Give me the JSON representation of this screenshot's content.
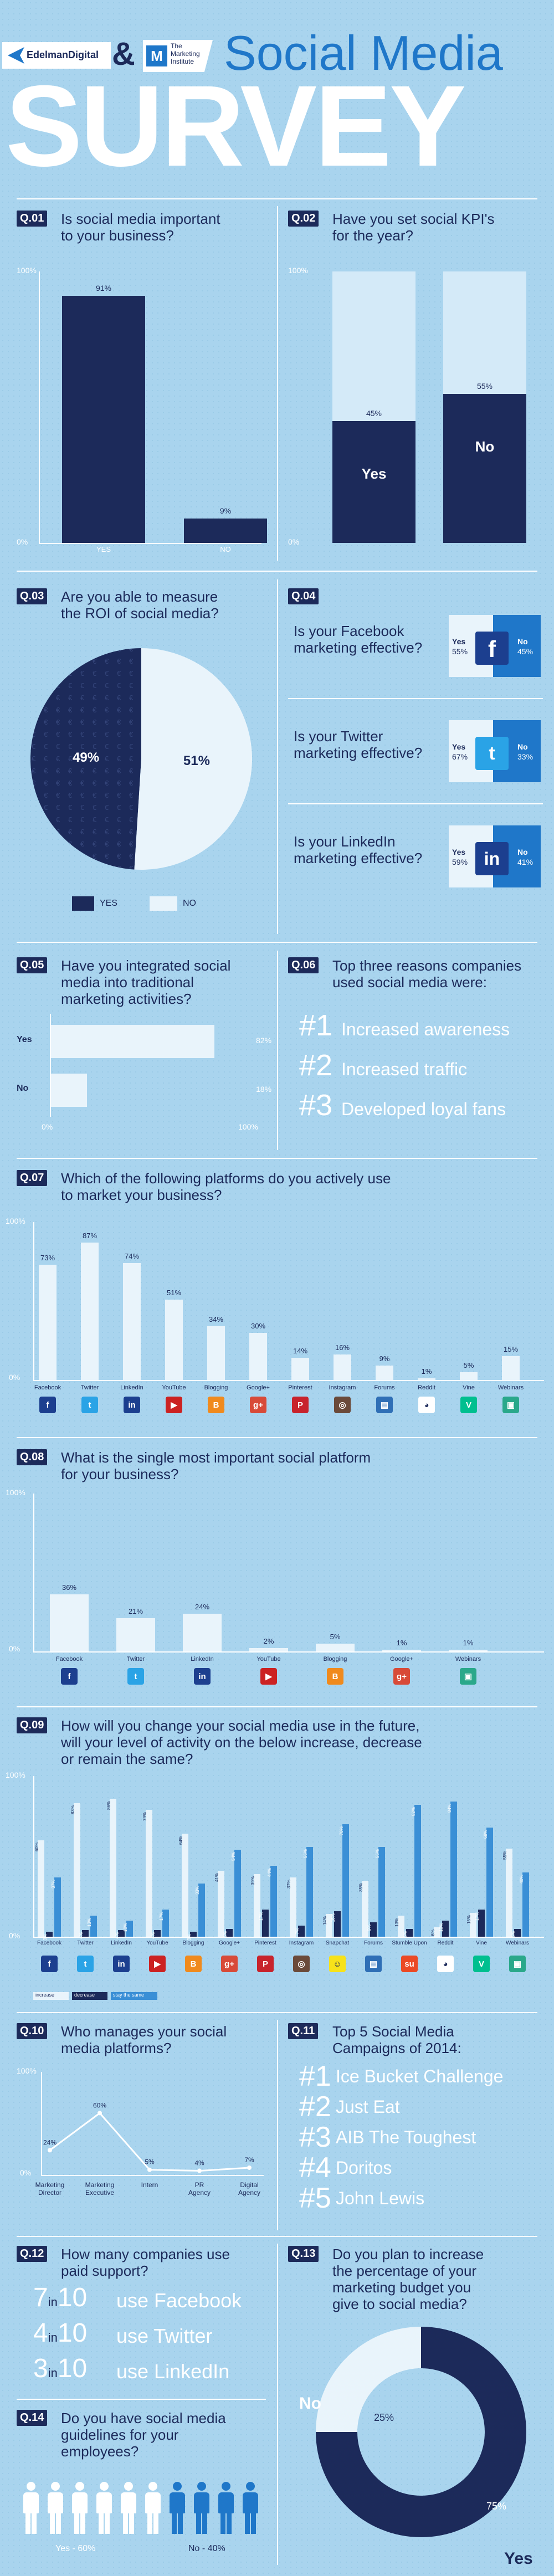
{
  "header": {
    "brand1": "EdelmanDigital",
    "amp": "&",
    "brand2_line1": "The",
    "brand2_line2": "Marketing",
    "brand2_line3": "Institute",
    "brand2_mark": "M",
    "title_line1": "Social Media",
    "title_line2": "SURVEY"
  },
  "axis": {
    "pct100": "100%",
    "pct0": "0%"
  },
  "q01": {
    "tag": "Q.01",
    "text_l1": "Is social media important",
    "text_l2": "to your business?",
    "chart_data": {
      "type": "bar",
      "categories": [
        "YES",
        "NO"
      ],
      "values": [
        91,
        9
      ],
      "value_labels": [
        "91%",
        "9%"
      ],
      "ylim": [
        0,
        100
      ]
    }
  },
  "q02": {
    "tag": "Q.02",
    "text_l1": "Have you set social KPI's",
    "text_l2": "for the year?",
    "chart_data": {
      "type": "bar",
      "categories": [
        "Yes",
        "No"
      ],
      "values": [
        45,
        55
      ],
      "value_labels": [
        "45%",
        "55%"
      ],
      "ylim": [
        0,
        100
      ]
    }
  },
  "q03": {
    "tag": "Q.03",
    "text_l1": "Are you able to measure",
    "text_l2": "the ROI of social media?",
    "chart_data": {
      "type": "pie",
      "categories": [
        "YES",
        "NO"
      ],
      "values": [
        49,
        51
      ],
      "value_labels": [
        "49%",
        "51%"
      ],
      "colors": [
        "#1c2a5a",
        "#e9f4fb"
      ]
    },
    "legend_yes": "YES",
    "legend_no": "NO"
  },
  "q04": {
    "tag": "Q.04",
    "items": [
      {
        "q_l1": "Is your Facebook",
        "q_l2": "marketing effective?",
        "yes": "Yes",
        "yes_v": "55%",
        "no": "No",
        "no_v": "45%",
        "icon": "f"
      },
      {
        "q_l1": "Is your Twitter",
        "q_l2": "marketing effective?",
        "yes": "Yes",
        "yes_v": "67%",
        "no": "No",
        "no_v": "33%",
        "icon": "t"
      },
      {
        "q_l1": "Is your LinkedIn",
        "q_l2": "marketing effective?",
        "yes": "Yes",
        "yes_v": "59%",
        "no": "No",
        "no_v": "41%",
        "icon": "in"
      }
    ],
    "chart_data": {
      "type": "bar",
      "categories": [
        "Facebook",
        "Twitter",
        "LinkedIn"
      ],
      "series": [
        {
          "name": "Yes",
          "values": [
            55,
            67,
            59
          ]
        },
        {
          "name": "No",
          "values": [
            45,
            33,
            41
          ]
        }
      ]
    }
  },
  "q05": {
    "tag": "Q.05",
    "text_l1": "Have you integrated social",
    "text_l2": "media into traditional",
    "text_l3": "marketing activities?",
    "chart_data": {
      "type": "bar",
      "orientation": "horizontal",
      "categories": [
        "Yes",
        "No"
      ],
      "values": [
        82,
        18
      ],
      "value_labels": [
        "82%",
        "18%"
      ],
      "xlim": [
        0,
        100
      ]
    }
  },
  "q06": {
    "tag": "Q.06",
    "text_l1": "Top three reasons companies",
    "text_l2": "used social media were:",
    "reasons": [
      {
        "n": "#1",
        "t": "Increased awareness"
      },
      {
        "n": "#2",
        "t": "Increased traffic"
      },
      {
        "n": "#3",
        "t": "Developed loyal fans"
      }
    ]
  },
  "q07": {
    "tag": "Q.07",
    "text_l1": "Which of the following platforms do you actively use",
    "text_l2": "to market your business?",
    "chart_data": {
      "type": "bar",
      "categories": [
        "Facebook",
        "Twitter",
        "LinkedIn",
        "YouTube",
        "Blogging",
        "Google+",
        "Pinterest",
        "Instagram",
        "Forums",
        "Reddit",
        "Vine",
        "Webinars"
      ],
      "values": [
        73,
        87,
        74,
        51,
        34,
        30,
        14,
        16,
        9,
        1,
        5,
        15
      ],
      "value_labels": [
        "73%",
        "87%",
        "74%",
        "51%",
        "34%",
        "30%",
        "14%",
        "16%",
        "9%",
        "1%",
        "5%",
        "15%"
      ],
      "ylim": [
        0,
        100
      ]
    }
  },
  "q08": {
    "tag": "Q.08",
    "text_l1": "What is the single most important social platform",
    "text_l2": "for your business?",
    "chart_data": {
      "type": "bar",
      "categories": [
        "Facebook",
        "Twitter",
        "LinkedIn",
        "YouTube",
        "Blogging",
        "Google+",
        "Webinars"
      ],
      "values": [
        36,
        21,
        24,
        2,
        5,
        1,
        1
      ],
      "value_labels": [
        "36%",
        "21%",
        "24%",
        "2%",
        "5%",
        "1%",
        "1%"
      ],
      "ylim": [
        0,
        100
      ]
    }
  },
  "q09": {
    "tag": "Q.09",
    "text_l1": "How will you change your social media use in the future,",
    "text_l2": "will your level of activity on the below increase, decrease",
    "text_l3": "or remain the same?",
    "legend": [
      "increase",
      "decrease",
      "stay the same"
    ],
    "chart_data": {
      "type": "bar",
      "categories": [
        "Facebook",
        "Twitter",
        "LinkedIn",
        "YouTube",
        "Blogging",
        "Google+",
        "Pinterest",
        "Instagram",
        "Snapchat",
        "Forums",
        "Stumble Upon",
        "Reddit",
        "Vine",
        "Webinars"
      ],
      "series": [
        {
          "name": "increase",
          "values": [
            60,
            83,
            86,
            79,
            64,
            41,
            39,
            37,
            14,
            35,
            13,
            6,
            15,
            55
          ]
        },
        {
          "name": "decrease",
          "values": [
            3,
            4,
            4,
            4,
            3,
            5,
            17,
            7,
            16,
            9,
            5,
            10,
            17,
            5
          ]
        },
        {
          "name": "stay the same",
          "values": [
            37,
            13,
            10,
            17,
            33,
            54,
            44,
            56,
            70,
            56,
            82,
            84,
            68,
            40
          ]
        }
      ],
      "ylim": [
        0,
        100
      ]
    }
  },
  "q10": {
    "tag": "Q.10",
    "text_l1": "Who manages your social",
    "text_l2": "media platforms?",
    "chart_data": {
      "type": "line",
      "categories": [
        "Marketing Director",
        "Marketing Executive",
        "Intern",
        "PR Agency",
        "Digital Agency"
      ],
      "values": [
        24,
        60,
        5,
        4,
        7
      ],
      "value_labels": [
        "24%",
        "60%",
        "5%",
        "4%",
        "7%"
      ],
      "ylim": [
        0,
        100
      ]
    }
  },
  "q11": {
    "tag": "Q.11",
    "text_l1": "Top 5 Social Media",
    "text_l2": "Campaigns of 2014:",
    "items": [
      {
        "n": "#1",
        "t": "Ice Bucket Challenge"
      },
      {
        "n": "#2",
        "t": "Just Eat"
      },
      {
        "n": "#3",
        "t": "AIB The Toughest"
      },
      {
        "n": "#4",
        "t": "Doritos"
      },
      {
        "n": "#5",
        "t": "John Lewis"
      }
    ]
  },
  "q12": {
    "tag": "Q.12",
    "text_l1": "How many companies use",
    "text_l2": "paid support?",
    "items": [
      {
        "a": "7",
        "in": "in",
        "b": "10",
        "t": "use Facebook"
      },
      {
        "a": "4",
        "in": "in",
        "b": "10",
        "t": "use Twitter"
      },
      {
        "a": "3",
        "in": "in",
        "b": "10",
        "t": "use LinkedIn"
      }
    ]
  },
  "q13": {
    "tag": "Q.13",
    "text_l1": "Do you plan to increase",
    "text_l2": "the percentage of your",
    "text_l3": "marketing budget you",
    "text_l4": "give to social media?",
    "chart_data": {
      "type": "pie",
      "categories": [
        "Yes",
        "No"
      ],
      "values": [
        75,
        25
      ],
      "value_labels": [
        "75%",
        "25%"
      ],
      "colors": [
        "#1c2a5a",
        "#e9f4fb"
      ]
    }
  },
  "q14": {
    "tag": "Q.14",
    "text_l1": "Do you have social media",
    "text_l2": "guidelines for your",
    "text_l3": "employees?",
    "yes_label": "Yes - 60%",
    "no_label": "No - 40%",
    "chart_data": {
      "type": "bar",
      "categories": [
        "Yes",
        "No"
      ],
      "values": [
        60,
        40
      ]
    }
  },
  "colors": {
    "navy": "#1c2a5a",
    "sky": "#a9d4ee",
    "light": "#e9f4fb",
    "blue": "#1f77c9",
    "mid": "#3a8fd6"
  }
}
